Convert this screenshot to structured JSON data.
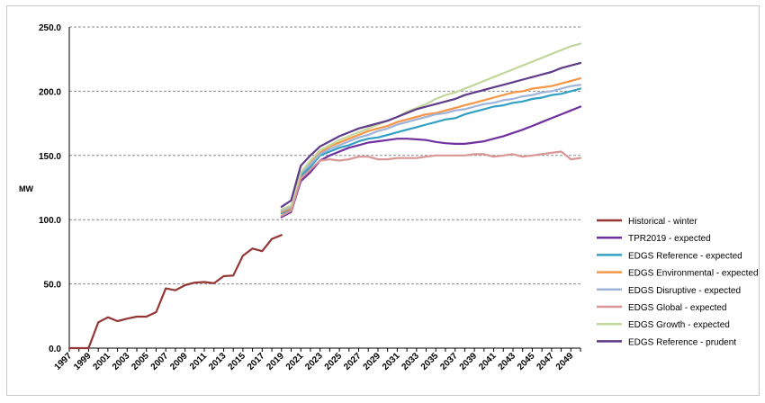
{
  "chart_data": {
    "type": "line",
    "ylabel": "MW",
    "xlabel": "",
    "ylim": [
      0,
      250
    ],
    "y_ticks": [
      "0.0",
      "50.0",
      "100.0",
      "150.0",
      "200.0",
      "250.0"
    ],
    "x_range": [
      1997,
      2050
    ],
    "x_ticks": [
      "1997",
      "1999",
      "2001",
      "2003",
      "2005",
      "2007",
      "2009",
      "2011",
      "2013",
      "2015",
      "2017",
      "2019",
      "2021",
      "2023",
      "2025",
      "2027",
      "2029",
      "2031",
      "2033",
      "2035",
      "2037",
      "2039",
      "2041",
      "2043",
      "2045",
      "2047",
      "2049"
    ],
    "grid": "horizontal dashed",
    "legend_position": "right",
    "series": [
      {
        "name": "Historical - winter",
        "color": "#943634",
        "x": [
          1997,
          1998,
          1999,
          2000,
          2001,
          2002,
          2003,
          2004,
          2005,
          2006,
          2007,
          2008,
          2009,
          2010,
          2011,
          2012,
          2013,
          2014,
          2015,
          2016,
          2017,
          2018,
          2019
        ],
        "values": [
          0,
          0,
          0,
          20,
          24,
          21,
          23,
          24.5,
          24.5,
          28,
          46.5,
          45,
          49,
          51,
          51.5,
          50.5,
          56,
          56.5,
          72,
          77.5,
          75.5,
          85,
          88
        ]
      },
      {
        "name": "TPR2019 - expected",
        "color": "#7030a0",
        "x": [
          2019,
          2020,
          2021,
          2022,
          2023,
          2024,
          2025,
          2026,
          2027,
          2028,
          2029,
          2030,
          2031,
          2032,
          2033,
          2034,
          2035,
          2036,
          2037,
          2038,
          2039,
          2040,
          2041,
          2042,
          2043,
          2044,
          2045,
          2046,
          2047,
          2048,
          2049,
          2050
        ],
        "values": [
          102,
          106,
          130,
          137,
          146,
          150,
          153,
          156,
          158,
          160,
          161,
          162,
          163,
          163,
          162.5,
          162,
          160.5,
          159.5,
          159,
          159,
          160,
          161,
          163,
          165,
          167.5,
          170,
          173,
          176,
          179,
          182,
          185,
          188
        ]
      },
      {
        "name": "EDGS Reference - expected",
        "color": "#31a0c3",
        "x": [
          2019,
          2020,
          2021,
          2022,
          2023,
          2024,
          2025,
          2026,
          2027,
          2028,
          2029,
          2030,
          2031,
          2032,
          2033,
          2034,
          2035,
          2036,
          2037,
          2038,
          2039,
          2040,
          2041,
          2042,
          2043,
          2044,
          2045,
          2046,
          2047,
          2048,
          2049,
          2050
        ],
        "values": [
          105,
          108,
          134,
          141,
          150,
          153,
          156,
          158,
          161,
          163,
          164,
          166,
          168,
          170,
          172,
          174,
          176,
          178,
          179,
          182,
          184,
          186,
          188,
          189,
          191,
          192,
          194,
          195,
          197,
          198,
          200,
          202
        ]
      },
      {
        "name": "EDGS Environmental - expected",
        "color": "#f79646",
        "x": [
          2019,
          2020,
          2021,
          2022,
          2023,
          2024,
          2025,
          2026,
          2027,
          2028,
          2029,
          2030,
          2031,
          2032,
          2033,
          2034,
          2035,
          2036,
          2037,
          2038,
          2039,
          2040,
          2041,
          2042,
          2043,
          2044,
          2045,
          2046,
          2047,
          2048,
          2049,
          2050
        ],
        "values": [
          106,
          109,
          136,
          144,
          152,
          157,
          160,
          163,
          166,
          169,
          171,
          173,
          176,
          178,
          180,
          182,
          183,
          185,
          187,
          189,
          191,
          193,
          195,
          197,
          199,
          200,
          202,
          203,
          204,
          206,
          208,
          210
        ]
      },
      {
        "name": "EDGS Disruptive - expected",
        "color": "#9fb4db",
        "x": [
          2019,
          2020,
          2021,
          2022,
          2023,
          2024,
          2025,
          2026,
          2027,
          2028,
          2029,
          2030,
          2031,
          2032,
          2033,
          2034,
          2035,
          2036,
          2037,
          2038,
          2039,
          2040,
          2041,
          2042,
          2043,
          2044,
          2045,
          2046,
          2047,
          2048,
          2049,
          2050
        ],
        "values": [
          107,
          110,
          136,
          143,
          151,
          155,
          158,
          161,
          164,
          166,
          169,
          171,
          174,
          176,
          178,
          180,
          182,
          183,
          185,
          186,
          188,
          190,
          191,
          193,
          194,
          196,
          197,
          199,
          200,
          202,
          204,
          205
        ]
      },
      {
        "name": "EDGS Global - expected",
        "color": "#d99694",
        "x": [
          2019,
          2020,
          2021,
          2022,
          2023,
          2024,
          2025,
          2026,
          2027,
          2028,
          2029,
          2030,
          2031,
          2032,
          2033,
          2034,
          2035,
          2036,
          2037,
          2038,
          2039,
          2040,
          2041,
          2042,
          2043,
          2044,
          2045,
          2046,
          2047,
          2048,
          2049,
          2050
        ],
        "values": [
          103,
          107,
          132,
          139,
          146,
          147,
          146,
          147,
          149,
          149,
          147,
          147,
          148,
          148,
          148,
          149,
          150,
          150,
          150,
          150,
          151,
          151,
          149,
          150,
          151,
          149,
          150,
          151,
          152,
          153,
          147,
          148
        ]
      },
      {
        "name": "EDGS Growth - expected",
        "color": "#c3d69b",
        "x": [
          2019,
          2020,
          2021,
          2022,
          2023,
          2024,
          2025,
          2026,
          2027,
          2028,
          2029,
          2030,
          2031,
          2032,
          2033,
          2034,
          2035,
          2036,
          2037,
          2038,
          2039,
          2040,
          2041,
          2042,
          2043,
          2044,
          2045,
          2046,
          2047,
          2048,
          2049,
          2050
        ],
        "values": [
          108,
          111,
          137,
          146,
          154,
          158,
          162,
          165,
          168,
          171,
          174,
          177,
          180,
          184,
          187,
          190,
          194,
          197,
          199,
          202,
          205,
          208,
          211,
          214,
          217,
          220,
          223,
          226,
          229,
          232,
          235,
          237
        ]
      },
      {
        "name": "EDGS Reference - prudent",
        "color": "#5f3b8a",
        "x": [
          2019,
          2020,
          2021,
          2022,
          2023,
          2024,
          2025,
          2026,
          2027,
          2028,
          2029,
          2030,
          2031,
          2032,
          2033,
          2034,
          2035,
          2036,
          2037,
          2038,
          2039,
          2040,
          2041,
          2042,
          2043,
          2044,
          2045,
          2046,
          2047,
          2048,
          2049,
          2050
        ],
        "values": [
          110,
          115,
          142,
          150,
          157,
          161,
          165,
          168,
          171,
          173,
          175,
          177,
          180,
          183,
          186,
          188,
          190,
          192,
          194,
          197,
          199,
          201,
          203,
          205,
          207,
          209,
          211,
          213,
          215,
          218,
          220,
          222
        ]
      }
    ]
  }
}
